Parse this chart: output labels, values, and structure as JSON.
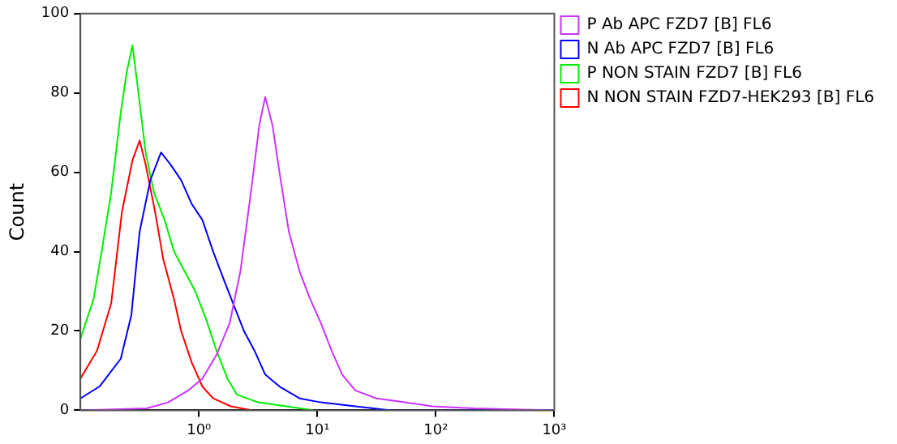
{
  "chart_data": {
    "type": "line",
    "ylabel": "Count",
    "xlim": [
      0.1,
      1000
    ],
    "ylim": [
      0,
      100
    ],
    "log": "x",
    "xticks": [
      {
        "value": 1,
        "label": "10⁰"
      },
      {
        "value": 10,
        "label": "10¹"
      },
      {
        "value": 100,
        "label": "10²"
      },
      {
        "value": 1000,
        "label": "10³"
      }
    ],
    "yticks": [
      0,
      20,
      40,
      60,
      80,
      100
    ],
    "grid": false,
    "legend": "top right",
    "marker": "none",
    "line_style": "solid",
    "series": [
      {
        "name": "P Ab APC FZD7 [B] FL6",
        "color": "#cc33ff",
        "x": [
          0.1,
          0.363,
          0.55,
          0.813,
          1.07,
          1.41,
          1.82,
          2.24,
          2.75,
          3.24,
          3.63,
          4.17,
          4.79,
          5.75,
          7.08,
          8.71,
          10.7,
          13.2,
          16.2,
          20.9,
          31.6,
          55,
          93.3,
          209,
          1000
        ],
        "values": [
          0,
          0.5,
          2,
          5,
          8,
          14,
          22,
          35,
          55,
          72,
          79,
          72,
          60,
          45,
          35,
          28,
          22,
          15,
          9,
          5,
          3,
          2,
          1,
          0.5,
          0
        ]
      },
      {
        "name": "N Ab APC FZD7 [B] FL6",
        "color": "#0000ff",
        "x": [
          0.1,
          0.145,
          0.219,
          0.269,
          0.316,
          0.389,
          0.479,
          0.575,
          0.708,
          0.871,
          1.07,
          1.32,
          1.62,
          2.0,
          2.4,
          2.95,
          3.63,
          4.79,
          7.08,
          10.7,
          20.9,
          41.7,
          1000
        ],
        "values": [
          3,
          6,
          13,
          24,
          45,
          58,
          65,
          62,
          58,
          52,
          48,
          40,
          33,
          26,
          20,
          15,
          9,
          6,
          3,
          2,
          1,
          0,
          0
        ]
      },
      {
        "name": "P NON STAIN FZD7 [B] FL6",
        "color": "#00ee00",
        "x": [
          0.1,
          0.129,
          0.151,
          0.182,
          0.219,
          0.245,
          0.275,
          0.309,
          0.355,
          0.417,
          0.513,
          0.617,
          0.759,
          0.933,
          1.15,
          1.41,
          1.74,
          2.09,
          3.16,
          5.5,
          9.33
        ],
        "values": [
          18,
          28,
          40,
          55,
          75,
          85,
          92,
          80,
          65,
          55,
          48,
          40,
          35,
          30,
          23,
          15,
          8,
          4,
          2,
          1,
          0
        ]
      },
      {
        "name": "N NON STAIN FZD7-HEK293 [B] FL6",
        "color": "#ff0000",
        "x": [
          0.1,
          0.138,
          0.182,
          0.224,
          0.275,
          0.316,
          0.355,
          0.427,
          0.501,
          0.617,
          0.708,
          0.871,
          1.07,
          1.32,
          1.86,
          2.82
        ],
        "values": [
          8,
          15,
          27,
          50,
          63,
          68,
          62,
          50,
          38,
          28,
          20,
          12,
          6,
          3,
          1,
          0
        ]
      }
    ]
  }
}
